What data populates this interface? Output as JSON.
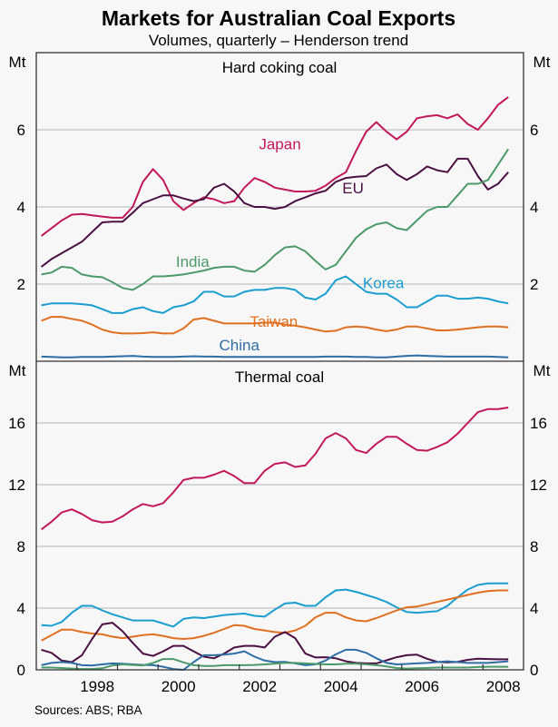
{
  "chart_data": {
    "type": "line",
    "title": "Markets for Australian Coal Exports",
    "subtitle": "Volumes, quarterly – Henderson trend",
    "source": "Sources: ABS; RBA",
    "x_ticks": [
      "1998",
      "2000",
      "2002",
      "2004",
      "2006",
      "2008"
    ],
    "x_range": [
      1997,
      2009
    ],
    "x_start": 1997.125,
    "x_step": 0.25,
    "panels": [
      {
        "title": "Hard coking coal",
        "unit": "Mt",
        "ylim": [
          0,
          8
        ],
        "y_ticks": [
          "2",
          "4",
          "6"
        ],
        "y_tick_values": [
          2,
          4,
          6
        ],
        "series": [
          {
            "name": "Japan",
            "color": "#c2185b",
            "label_pos": [
              2003.0,
              5.5
            ],
            "values": [
              3.25,
              3.45,
              3.65,
              3.8,
              3.82,
              3.78,
              3.75,
              3.72,
              3.72,
              4.0,
              4.65,
              4.98,
              4.7,
              4.15,
              3.92,
              4.1,
              4.25,
              4.2,
              4.1,
              4.15,
              4.5,
              4.75,
              4.65,
              4.5,
              4.45,
              4.4,
              4.4,
              4.42,
              4.55,
              4.75,
              4.9,
              5.45,
              5.95,
              6.2,
              5.95,
              5.75,
              5.95,
              6.3,
              6.35,
              6.38,
              6.3,
              6.4,
              6.15,
              6.0,
              6.3,
              6.65,
              6.85
            ]
          },
          {
            "name": "EU",
            "color": "#4a1042",
            "label_pos": [
              2004.8,
              4.35
            ],
            "values": [
              2.45,
              2.65,
              2.8,
              2.95,
              3.1,
              3.35,
              3.6,
              3.62,
              3.62,
              3.85,
              4.1,
              4.2,
              4.3,
              4.3,
              4.22,
              4.15,
              4.2,
              4.5,
              4.6,
              4.4,
              4.1,
              4.0,
              4.0,
              3.95,
              4.0,
              4.15,
              4.25,
              4.35,
              4.42,
              4.65,
              4.75,
              4.78,
              4.8,
              5.0,
              5.1,
              4.85,
              4.7,
              4.85,
              5.05,
              4.95,
              4.9,
              5.25,
              5.25,
              4.8,
              4.45,
              4.6,
              4.9
            ]
          },
          {
            "name": "India",
            "color": "#4c9a6a",
            "label_pos": [
              2000.85,
              2.45
            ],
            "values": [
              2.25,
              2.3,
              2.45,
              2.42,
              2.25,
              2.2,
              2.18,
              2.05,
              1.9,
              1.85,
              2.0,
              2.2,
              2.2,
              2.22,
              2.25,
              2.3,
              2.35,
              2.42,
              2.45,
              2.45,
              2.35,
              2.32,
              2.5,
              2.75,
              2.95,
              2.98,
              2.85,
              2.6,
              2.38,
              2.5,
              2.85,
              3.2,
              3.42,
              3.55,
              3.6,
              3.45,
              3.4,
              3.65,
              3.9,
              4.0,
              4.0,
              4.3,
              4.6,
              4.6,
              4.7,
              5.1,
              5.5
            ]
          },
          {
            "name": "Korea",
            "color": "#1a9ecf",
            "label_pos": [
              2005.55,
              1.9
            ],
            "values": [
              1.45,
              1.5,
              1.5,
              1.5,
              1.48,
              1.45,
              1.35,
              1.25,
              1.25,
              1.35,
              1.4,
              1.3,
              1.25,
              1.4,
              1.45,
              1.55,
              1.8,
              1.8,
              1.68,
              1.68,
              1.8,
              1.85,
              1.85,
              1.9,
              1.9,
              1.85,
              1.65,
              1.6,
              1.75,
              2.1,
              2.2,
              2.0,
              1.8,
              1.75,
              1.75,
              1.6,
              1.4,
              1.4,
              1.55,
              1.7,
              1.7,
              1.62,
              1.62,
              1.65,
              1.62,
              1.55,
              1.5
            ]
          },
          {
            "name": "Taiwan",
            "color": "#e07020",
            "label_pos": [
              2002.85,
              0.9
            ],
            "values": [
              1.05,
              1.15,
              1.15,
              1.1,
              1.05,
              0.95,
              0.82,
              0.75,
              0.72,
              0.72,
              0.73,
              0.75,
              0.72,
              0.72,
              0.85,
              1.08,
              1.12,
              1.05,
              0.98,
              0.98,
              0.98,
              0.98,
              1.0,
              1.0,
              0.95,
              0.92,
              0.88,
              0.82,
              0.77,
              0.79,
              0.88,
              0.9,
              0.88,
              0.82,
              0.78,
              0.82,
              0.9,
              0.9,
              0.85,
              0.8,
              0.8,
              0.82,
              0.85,
              0.88,
              0.9,
              0.9,
              0.88
            ]
          },
          {
            "name": "China",
            "color": "#2e6ea6",
            "label_pos": [
              2002.0,
              0.28
            ],
            "values": [
              0.12,
              0.11,
              0.1,
              0.1,
              0.11,
              0.11,
              0.11,
              0.12,
              0.13,
              0.14,
              0.12,
              0.11,
              0.11,
              0.11,
              0.12,
              0.13,
              0.12,
              0.12,
              0.11,
              0.11,
              0.11,
              0.11,
              0.11,
              0.11,
              0.11,
              0.11,
              0.11,
              0.11,
              0.12,
              0.12,
              0.12,
              0.11,
              0.11,
              0.1,
              0.1,
              0.12,
              0.14,
              0.15,
              0.14,
              0.13,
              0.12,
              0.12,
              0.12,
              0.12,
              0.12,
              0.11,
              0.1
            ]
          }
        ]
      },
      {
        "title": "Thermal coal",
        "unit": "Mt",
        "ylim": [
          0,
          20
        ],
        "y_ticks": [
          "0",
          "4",
          "8",
          "12",
          "16"
        ],
        "y_tick_values": [
          0,
          4,
          8,
          12,
          16
        ],
        "series": [
          {
            "name": "Japan",
            "color": "#c2185b",
            "values": [
              9.1,
              9.6,
              10.2,
              10.4,
              10.1,
              9.7,
              9.55,
              9.6,
              9.95,
              10.4,
              10.75,
              10.6,
              10.8,
              11.5,
              12.3,
              12.45,
              12.45,
              12.65,
              12.9,
              12.55,
              12.1,
              12.1,
              12.9,
              13.35,
              13.45,
              13.15,
              13.25,
              14.0,
              15.0,
              15.35,
              15.0,
              14.25,
              14.05,
              14.65,
              15.1,
              15.1,
              14.65,
              14.25,
              14.2,
              14.45,
              14.75,
              15.3,
              16.0,
              16.7,
              16.9,
              16.9,
              17.0
            ]
          },
          {
            "name": "Korea",
            "color": "#1a9ecf",
            "values": [
              2.9,
              2.85,
              3.1,
              3.7,
              4.15,
              4.15,
              3.85,
              3.6,
              3.4,
              3.2,
              3.2,
              3.2,
              3.0,
              2.8,
              3.3,
              3.4,
              3.35,
              3.45,
              3.55,
              3.6,
              3.65,
              3.5,
              3.45,
              3.9,
              4.3,
              4.35,
              4.15,
              4.15,
              4.7,
              5.15,
              5.2,
              5.05,
              4.85,
              4.65,
              4.4,
              4.05,
              3.75,
              3.7,
              3.75,
              3.8,
              4.15,
              4.7,
              5.2,
              5.5,
              5.6,
              5.6,
              5.6
            ]
          },
          {
            "name": "Taiwan",
            "color": "#e07020",
            "values": [
              1.9,
              2.25,
              2.6,
              2.6,
              2.45,
              2.35,
              2.3,
              2.15,
              2.05,
              2.15,
              2.25,
              2.3,
              2.2,
              2.05,
              2.0,
              2.05,
              2.2,
              2.4,
              2.65,
              2.9,
              2.85,
              2.65,
              2.55,
              2.45,
              2.4,
              2.55,
              2.85,
              3.4,
              3.7,
              3.7,
              3.4,
              3.2,
              3.15,
              3.35,
              3.6,
              3.85,
              4.05,
              4.1,
              4.25,
              4.4,
              4.55,
              4.7,
              4.85,
              5.0,
              5.1,
              5.15,
              5.15
            ]
          },
          {
            "name": "EU",
            "color": "#4a1042",
            "values": [
              1.3,
              1.1,
              0.6,
              0.5,
              0.95,
              2.0,
              2.95,
              3.05,
              2.5,
              1.75,
              1.05,
              0.9,
              1.2,
              1.55,
              1.55,
              1.2,
              0.85,
              0.75,
              1.05,
              1.45,
              1.55,
              1.55,
              1.45,
              2.15,
              2.45,
              2.05,
              1.05,
              0.8,
              0.82,
              0.75,
              0.55,
              0.45,
              0.42,
              0.42,
              0.62,
              0.82,
              0.95,
              0.98,
              0.72,
              0.52,
              0.48,
              0.52,
              0.65,
              0.72,
              0.7,
              0.68,
              0.68
            ]
          },
          {
            "name": "China",
            "color": "#2e6ea6",
            "values": [
              0.3,
              0.45,
              0.5,
              0.45,
              0.3,
              0.28,
              0.35,
              0.42,
              0.4,
              0.35,
              0.32,
              0.3,
              0.2,
              0.05,
              0.0,
              0.5,
              0.95,
              0.95,
              0.98,
              1.05,
              1.2,
              0.85,
              0.6,
              0.5,
              0.52,
              0.42,
              0.3,
              0.35,
              0.6,
              1.0,
              1.3,
              1.3,
              1.1,
              0.75,
              0.45,
              0.35,
              0.38,
              0.42,
              0.45,
              0.5,
              0.55,
              0.5,
              0.45,
              0.45,
              0.45,
              0.5,
              0.55
            ]
          },
          {
            "name": "India",
            "color": "#4c9a6a",
            "values": [
              0.15,
              0.15,
              0.12,
              0.08,
              0.05,
              0.05,
              0.1,
              0.28,
              0.35,
              0.32,
              0.28,
              0.45,
              0.7,
              0.7,
              0.48,
              0.3,
              0.25,
              0.25,
              0.3,
              0.3,
              0.3,
              0.32,
              0.35,
              0.4,
              0.45,
              0.45,
              0.42,
              0.38,
              0.35,
              0.35,
              0.4,
              0.4,
              0.35,
              0.3,
              0.22,
              0.12,
              0.08,
              0.1,
              0.12,
              0.15,
              0.15,
              0.15,
              0.15,
              0.18,
              0.2,
              0.2,
              0.2
            ]
          }
        ]
      }
    ]
  }
}
